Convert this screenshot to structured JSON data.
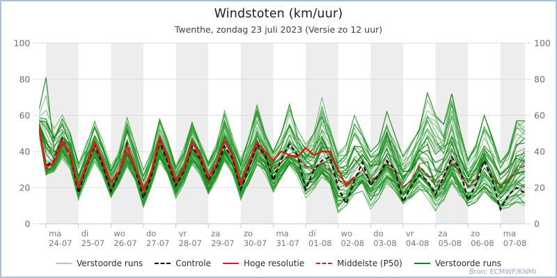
{
  "header": {
    "title": "Windstoten (km/uur)",
    "subtitle": "Twenthe, zondag 23 juli 2023 (Versie zo 12 uur)"
  },
  "source_label": "Bron: ECMWF/KNMI",
  "colors": {
    "border": "#a9c0dc",
    "band": "#ededed",
    "grid": "#dcdcdc",
    "axis": "#b9c9dc",
    "tick_label": "#6e6e6e",
    "day_label": "#787878",
    "ensemble_light": "#2f9d33",
    "ensemble_dark": "#128012",
    "legend_light_green": "#a7d3a0",
    "controle": "#111111",
    "hoge_resolutie": "#dd1c1c",
    "middelste_p50": "#a93327"
  },
  "legend": [
    {
      "label": "Verstoorde runs",
      "color": "#a7d3a0",
      "dash": false
    },
    {
      "label": "Controle",
      "color": "#111111",
      "dash": true
    },
    {
      "label": "Hoge resolutie",
      "color": "#dd1c1c",
      "dash": false
    },
    {
      "label": "Middelste (P50)",
      "color": "#a93327",
      "dash": true
    },
    {
      "label": "Verstoorde runs",
      "color": "#128012",
      "dash": false
    }
  ],
  "chart_data": {
    "type": "line",
    "title": "Windstoten (km/uur)",
    "subtitle": "Twenthe, zondag 23 juli 2023 (Versie zo 12 uur)",
    "ylabel": "km/uur",
    "ylim": [
      0,
      100
    ],
    "yticks": [
      0,
      20,
      40,
      60,
      80,
      100
    ],
    "x_start": "2023-07-23 18:00",
    "x_step_hours": 6,
    "n_points": 61,
    "grid": true,
    "legend_position": "bottom",
    "day_labels": [
      {
        "day": "ma",
        "date": "24-07"
      },
      {
        "day": "di",
        "date": "25-07"
      },
      {
        "day": "wo",
        "date": "26-07"
      },
      {
        "day": "do",
        "date": "27-07"
      },
      {
        "day": "vr",
        "date": "28-07"
      },
      {
        "day": "za",
        "date": "29-07"
      },
      {
        "day": "zo",
        "date": "30-07"
      },
      {
        "day": "ma",
        "date": "31-07"
      },
      {
        "day": "di",
        "date": "01-08"
      },
      {
        "day": "wo",
        "date": "02-08"
      },
      {
        "day": "do",
        "date": "03-08"
      },
      {
        "day": "vr",
        "date": "04-08"
      },
      {
        "day": "za",
        "date": "05-08"
      },
      {
        "day": "zo",
        "date": "06-08"
      },
      {
        "day": "ma",
        "date": "07-08"
      }
    ],
    "series": [
      {
        "name": "Hoge resolutie",
        "values": [
          58,
          31,
          34,
          46,
          39,
          20,
          33,
          45,
          35,
          23,
          29,
          43,
          31,
          19,
          29,
          48,
          37,
          24,
          30,
          45,
          38,
          26,
          33,
          46,
          38,
          22,
          34,
          45,
          40,
          35,
          40,
          38,
          37,
          42,
          38,
          40,
          40,
          30,
          21,
          25
        ]
      },
      {
        "name": "Controle",
        "values": [
          58,
          32,
          35,
          47,
          38,
          17,
          32,
          44,
          32,
          18,
          28,
          44,
          30,
          14,
          27,
          46,
          34,
          21,
          29,
          43,
          36,
          24,
          31,
          43,
          36,
          19,
          31,
          44,
          38,
          24,
          36,
          44,
          38,
          19,
          30,
          35,
          37,
          20,
          11,
          24,
          34,
          21,
          27,
          35,
          30,
          12,
          21,
          27,
          24,
          16,
          26,
          37,
          30,
          13,
          22,
          35,
          24,
          8,
          16,
          20,
          17
        ]
      },
      {
        "name": "Middelste (P50)",
        "values": [
          56,
          30,
          33,
          44,
          37,
          19,
          31,
          42,
          33,
          19,
          28,
          40,
          30,
          16,
          27,
          44,
          34,
          21,
          29,
          42,
          36,
          23,
          31,
          43,
          36,
          21,
          32,
          42,
          37,
          30,
          34,
          38,
          36,
          32,
          30,
          34,
          30,
          24,
          22,
          26,
          30,
          24,
          27,
          34,
          28,
          20,
          24,
          32,
          27,
          22,
          26,
          35,
          28,
          21,
          25,
          34,
          26,
          20,
          24,
          30,
          32
        ]
      },
      {
        "name": "Verstoorde runs (envelope min)",
        "values": [
          52,
          26,
          28,
          36,
          30,
          13,
          24,
          34,
          26,
          14,
          22,
          32,
          24,
          9,
          20,
          34,
          26,
          14,
          22,
          33,
          27,
          16,
          24,
          34,
          27,
          13,
          22,
          32,
          26,
          14,
          24,
          32,
          25,
          10,
          18,
          26,
          22,
          6,
          10,
          16,
          18,
          8,
          14,
          22,
          16,
          8,
          12,
          18,
          14,
          7,
          12,
          20,
          14,
          9,
          12,
          18,
          13,
          7,
          9,
          12,
          10
        ]
      },
      {
        "name": "Verstoorde runs (envelope max)",
        "values": [
          60,
          81,
          58,
          62,
          52,
          35,
          45,
          57,
          46,
          32,
          42,
          60,
          44,
          30,
          40,
          58,
          46,
          33,
          42,
          56,
          45,
          34,
          44,
          63,
          48,
          36,
          48,
          66,
          50,
          40,
          50,
          66,
          52,
          44,
          52,
          70,
          56,
          40,
          44,
          60,
          50,
          40,
          46,
          62,
          50,
          38,
          46,
          58,
          74,
          60,
          55,
          72,
          52,
          36,
          44,
          60,
          48,
          34,
          40,
          57,
          57
        ]
      }
    ],
    "ensemble": {
      "count": 50,
      "seed": 11,
      "outlier_start": [
        60,
        81,
        40
      ],
      "dark_every": 4
    }
  }
}
